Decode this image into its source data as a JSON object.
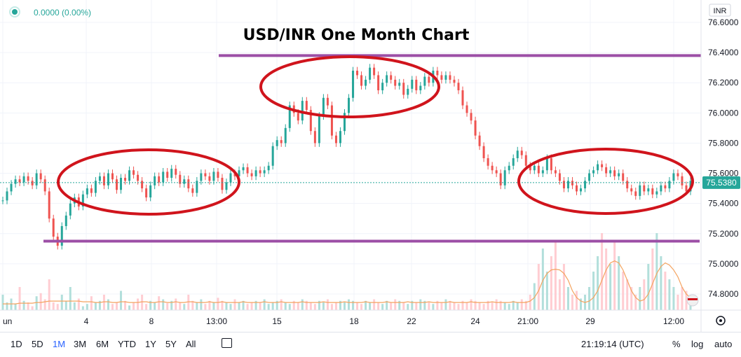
{
  "header": {
    "change_text": "0.0000 (0.00%)",
    "currency_badge": "INR"
  },
  "chart_data": {
    "type": "candlestick",
    "title": "USD/INR One Month Chart",
    "price_axis": {
      "ticks": [
        "76.6000",
        "76.4000",
        "76.2000",
        "76.0000",
        "75.8000",
        "75.6000",
        "75.4000",
        "75.2000",
        "75.0000",
        "74.8000"
      ],
      "range": [
        74.7,
        76.7
      ]
    },
    "current_price": "75.5380",
    "time_axis": {
      "ticks": [
        "un",
        "4",
        "8",
        "13:00",
        "15",
        "18",
        "22",
        "24",
        "21:00",
        "29",
        "12:00"
      ]
    },
    "candles": [
      75.42,
      75.48,
      75.53,
      75.56,
      75.54,
      75.58,
      75.55,
      75.52,
      75.6,
      75.56,
      75.48,
      75.3,
      75.18,
      75.12,
      75.25,
      75.32,
      75.4,
      75.44,
      75.38,
      75.46,
      75.5,
      75.47,
      75.55,
      75.58,
      75.52,
      75.6,
      75.56,
      75.49,
      75.57,
      75.55,
      75.62,
      75.59,
      75.55,
      75.5,
      75.44,
      75.52,
      75.58,
      75.54,
      75.61,
      75.57,
      75.63,
      75.59,
      75.53,
      75.56,
      75.5,
      75.47,
      75.55,
      75.6,
      75.58,
      75.55,
      75.61,
      75.57,
      75.49,
      75.54,
      75.6,
      75.58,
      75.62,
      75.64,
      75.6,
      75.58,
      75.62,
      75.6,
      75.62,
      75.65,
      75.78,
      75.82,
      75.8,
      75.9,
      76.05,
      76.0,
      75.95,
      76.08,
      76.02,
      75.88,
      75.8,
      75.98,
      76.1,
      76.05,
      75.85,
      75.8,
      75.88,
      76.0,
      76.1,
      76.28,
      76.25,
      76.18,
      76.22,
      76.3,
      76.25,
      76.15,
      76.2,
      76.25,
      76.22,
      76.18,
      76.2,
      76.12,
      76.16,
      76.22,
      76.15,
      76.18,
      76.24,
      76.2,
      76.28,
      76.25,
      76.22,
      76.25,
      76.22,
      76.2,
      76.15,
      76.05,
      76.0,
      75.95,
      75.85,
      75.78,
      75.7,
      75.65,
      75.62,
      75.6,
      75.52,
      75.62,
      75.65,
      75.7,
      75.75,
      75.72,
      75.65,
      75.62,
      75.65,
      75.6,
      75.62,
      75.7,
      75.62,
      75.6,
      75.55,
      75.5,
      75.55,
      75.52,
      75.48,
      75.5,
      75.55,
      75.6,
      75.62,
      75.66,
      75.64,
      75.6,
      75.62,
      75.58,
      75.6,
      75.55,
      75.5,
      75.48,
      75.45,
      75.52,
      75.48,
      75.5,
      75.46,
      75.48,
      75.52,
      75.5,
      75.55,
      75.6,
      75.58,
      75.52,
      75.48,
      75.55
    ],
    "volume": [
      0.2,
      0.1,
      0.15,
      0.08,
      0.3,
      0.12,
      0.1,
      0.05,
      0.18,
      0.22,
      0.14,
      0.4,
      0.1,
      0.08,
      0.2,
      0.12,
      0.3,
      0.1,
      0.15,
      0.05,
      0.08,
      0.18,
      0.1,
      0.12,
      0.2,
      0.14,
      0.08,
      0.1,
      0.25,
      0.12,
      0.06,
      0.1,
      0.15,
      0.2,
      0.08,
      0.12,
      0.1,
      0.18,
      0.14,
      0.09,
      0.12,
      0.15,
      0.1,
      0.08,
      0.2,
      0.12,
      0.1,
      0.14,
      0.08,
      0.12,
      0.1,
      0.16,
      0.12,
      0.1,
      0.08,
      0.14,
      0.1,
      0.12,
      0.08,
      0.1,
      0.12,
      0.1,
      0.14,
      0.08,
      0.1,
      0.12,
      0.14,
      0.1,
      0.08,
      0.12,
      0.1,
      0.14,
      0.12,
      0.1,
      0.08,
      0.12,
      0.1,
      0.14,
      0.08,
      0.1,
      0.12,
      0.1,
      0.14,
      0.12,
      0.1,
      0.08,
      0.12,
      0.1,
      0.14,
      0.1,
      0.08,
      0.12,
      0.1,
      0.14,
      0.12,
      0.1,
      0.08,
      0.12,
      0.1,
      0.14,
      0.12,
      0.1,
      0.08,
      0.12,
      0.1,
      0.14,
      0.12,
      0.1,
      0.08,
      0.12,
      0.1,
      0.14,
      0.12,
      0.1,
      0.08,
      0.12,
      0.1,
      0.14,
      0.12,
      0.1,
      0.08,
      0.12,
      0.1,
      0.14,
      0.12,
      0.2,
      0.35,
      0.6,
      0.8,
      0.5,
      0.7,
      0.9,
      0.4,
      0.6,
      0.3,
      0.2,
      0.25,
      0.15,
      0.2,
      0.3,
      0.5,
      0.7,
      1.0,
      0.8,
      0.6,
      0.9,
      0.7,
      0.5,
      0.4,
      0.3,
      0.2,
      0.3,
      0.4,
      0.6,
      0.8,
      1.0,
      0.7,
      0.5,
      0.4,
      0.3,
      0.2,
      0.3,
      0.25,
      0.2
    ],
    "volume_ma": [
      0.06,
      0.06,
      0.06,
      0.06,
      0.07,
      0.07,
      0.07,
      0.07,
      0.08,
      0.08,
      0.09,
      0.1,
      0.1,
      0.1,
      0.1,
      0.1,
      0.1,
      0.1,
      0.1,
      0.09,
      0.09,
      0.09,
      0.08,
      0.08,
      0.09,
      0.09,
      0.08,
      0.08,
      0.09,
      0.09,
      0.08,
      0.08,
      0.08,
      0.09,
      0.09,
      0.08,
      0.08,
      0.09,
      0.09,
      0.08,
      0.08,
      0.09,
      0.08,
      0.08,
      0.09,
      0.09,
      0.08,
      0.08,
      0.08,
      0.09,
      0.08,
      0.08,
      0.09,
      0.08,
      0.08,
      0.08,
      0.08,
      0.09,
      0.08,
      0.08,
      0.08,
      0.08,
      0.09,
      0.08,
      0.08,
      0.08,
      0.09,
      0.08,
      0.08,
      0.08,
      0.08,
      0.09,
      0.08,
      0.08,
      0.08,
      0.08,
      0.09,
      0.08,
      0.08,
      0.08,
      0.08,
      0.09,
      0.08,
      0.08,
      0.08,
      0.08,
      0.09,
      0.08,
      0.08,
      0.08,
      0.08,
      0.09,
      0.08,
      0.08,
      0.08,
      0.08,
      0.09,
      0.08,
      0.08,
      0.08,
      0.08,
      0.09,
      0.08,
      0.08,
      0.08,
      0.08,
      0.09,
      0.08,
      0.08,
      0.08,
      0.08,
      0.09,
      0.08,
      0.08,
      0.08,
      0.08,
      0.09,
      0.08,
      0.08,
      0.08,
      0.08,
      0.09,
      0.08,
      0.08,
      0.08,
      0.1,
      0.15,
      0.25,
      0.4,
      0.5,
      0.55,
      0.56,
      0.55,
      0.5,
      0.4,
      0.25,
      0.15,
      0.1,
      0.08,
      0.1,
      0.15,
      0.25,
      0.4,
      0.55,
      0.65,
      0.68,
      0.65,
      0.55,
      0.4,
      0.25,
      0.15,
      0.1,
      0.12,
      0.2,
      0.35,
      0.5,
      0.6,
      0.65,
      0.62,
      0.55,
      0.45,
      0.3,
      0.2,
      0.15
    ],
    "annotations": {
      "resistance_level": 76.38,
      "support_level": 75.15
    },
    "colors": {
      "up": "#26a69a",
      "down": "#ef5350",
      "annotation_line": "#9c4fa6",
      "ellipse": "#d0141c",
      "volume_ma": "#f4a460",
      "current_price": "#26a69a"
    }
  },
  "timeframes": [
    "1D",
    "5D",
    "1M",
    "3M",
    "6M",
    "YTD",
    "1Y",
    "5Y",
    "All"
  ],
  "active_timeframe": "1M",
  "clock": "21:19:14 (UTC)",
  "scale_options": {
    "percent": "%",
    "log": "log",
    "auto": "auto"
  }
}
